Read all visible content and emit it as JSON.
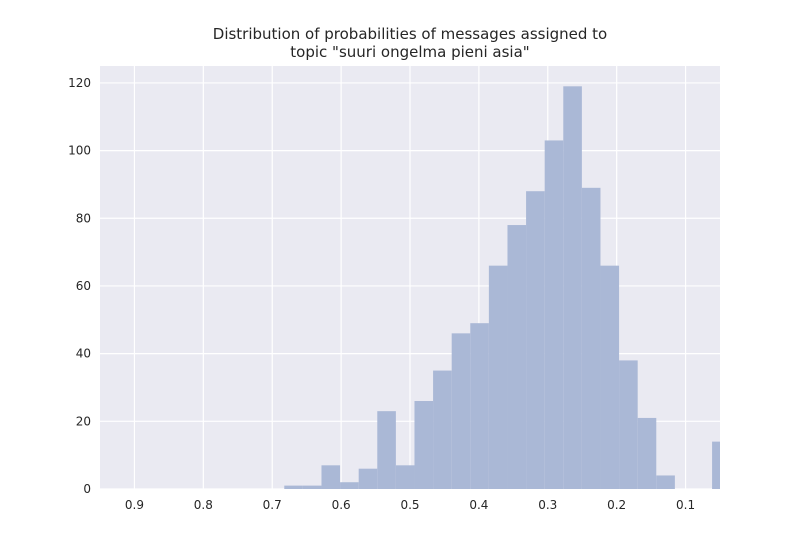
{
  "chart_data": {
    "type": "bar",
    "title_lines": [
      "Distribution of probabilities of messages assigned to",
      "topic \"suuri ongelma pieni asia\""
    ],
    "xlabel": "",
    "ylabel": "",
    "x_reversed": true,
    "xlim": [
      0.95,
      0.05
    ],
    "ylim": [
      0,
      125
    ],
    "x_ticks": [
      0.9,
      0.8,
      0.7,
      0.6,
      0.5,
      0.4,
      0.3,
      0.2,
      0.1
    ],
    "x_tick_labels": [
      "0.9",
      "0.8",
      "0.7",
      "0.6",
      "0.5",
      "0.4",
      "0.3",
      "0.2",
      "0.1"
    ],
    "y_ticks": [
      0,
      20,
      40,
      60,
      80,
      100,
      120
    ],
    "y_tick_labels": [
      "0",
      "20",
      "40",
      "60",
      "80",
      "100",
      "120"
    ],
    "grid": true,
    "bin_edges": [
      0.6825,
      0.6555,
      0.6285,
      0.6015,
      0.5745,
      0.5475,
      0.5205,
      0.4935,
      0.4665,
      0.4395,
      0.4125,
      0.3855,
      0.3585,
      0.3315,
      0.3045,
      0.2775,
      0.2505,
      0.2235,
      0.1965,
      0.1695,
      0.1425,
      0.1155,
      0.0885,
      0.0615,
      0.05
    ],
    "counts": [
      1,
      1,
      7,
      2,
      6,
      23,
      7,
      26,
      35,
      46,
      49,
      66,
      78,
      88,
      103,
      119,
      89,
      66,
      38,
      21,
      4,
      0,
      0,
      14
    ],
    "colors": {
      "bar": "#aab8d6",
      "plot_background": "#eaeaf2",
      "grid": "#ffffff",
      "text": "#262626"
    }
  }
}
